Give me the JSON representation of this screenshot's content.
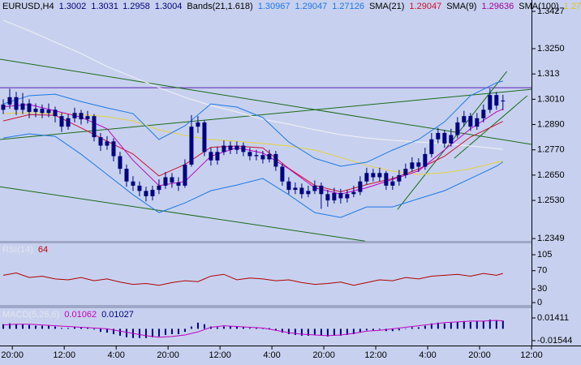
{
  "chart_data": [
    {
      "type": "candlestick",
      "header": [
        {
          "text": "EURUSD,H4",
          "color": "#000000"
        },
        {
          "text": 1.3002,
          "color": "#000080"
        },
        {
          "text": 1.3031,
          "color": "#000080"
        },
        {
          "text": 1.2958,
          "color": "#000080"
        },
        {
          "text": 1.3004,
          "color": "#000080"
        },
        {
          "text": "Bands(21,1.618)",
          "color": "#000000"
        },
        {
          "text": 1.30967,
          "color": "#1e78e6"
        },
        {
          "text": 1.29047,
          "color": "#1e78e6"
        },
        {
          "text": 1.27126,
          "color": "#1e78e6"
        },
        {
          "text": "SMA(21)",
          "color": "#000000"
        },
        {
          "text": 1.29047,
          "color": "#d01030"
        },
        {
          "text": "SMA(9)",
          "color": "#000000"
        },
        {
          "text": 1.29636,
          "color": "#a000a0"
        },
        {
          "text": "SMA(100)",
          "color": "#000000"
        },
        {
          "text": 1.27,
          "color": "#e0c020"
        }
      ],
      "color": "#000080",
      "open": [
        1.296,
        1.2985,
        1.302,
        1.296,
        1.299,
        1.295,
        1.2965,
        1.2945,
        1.296,
        1.293,
        1.288,
        1.292,
        1.2945,
        1.2915,
        1.293,
        1.283,
        1.279,
        1.281,
        1.274,
        1.268,
        1.262,
        1.26,
        1.2575,
        1.255,
        1.258,
        1.26,
        1.264,
        1.2615,
        1.26,
        1.27,
        1.288,
        1.29,
        1.276,
        1.272,
        1.276,
        1.279,
        1.277,
        1.279,
        1.276,
        1.274,
        1.2745,
        1.2725,
        1.275,
        1.269,
        1.262,
        1.258,
        1.259,
        1.256,
        1.2575,
        1.26,
        1.256,
        1.253,
        1.2565,
        1.254,
        1.256,
        1.257,
        1.262,
        1.266,
        1.264,
        1.266,
        1.26,
        1.262,
        1.265,
        1.268,
        1.271,
        1.269,
        1.275,
        1.282,
        1.285,
        1.28,
        1.284,
        1.29,
        1.293,
        1.288,
        1.292,
        1.296,
        1.303,
        1.3002
      ],
      "high": [
        1.301,
        1.306,
        1.3045,
        1.304,
        1.301,
        1.299,
        1.2985,
        1.299,
        1.2975,
        1.2945,
        1.294,
        1.297,
        1.296,
        1.2955,
        1.294,
        1.285,
        1.2835,
        1.2825,
        1.276,
        1.27,
        1.2645,
        1.262,
        1.2595,
        1.26,
        1.263,
        1.2665,
        1.266,
        1.264,
        1.2725,
        1.2935,
        1.293,
        1.291,
        1.278,
        1.2785,
        1.2815,
        1.281,
        1.281,
        1.2805,
        1.278,
        1.277,
        1.2765,
        1.277,
        1.2765,
        1.2705,
        1.264,
        1.2615,
        1.261,
        1.26,
        1.2625,
        1.2615,
        1.258,
        1.259,
        1.2585,
        1.258,
        1.26,
        1.2645,
        1.2685,
        1.268,
        1.2685,
        1.267,
        1.2645,
        1.2675,
        1.2705,
        1.2735,
        1.273,
        1.278,
        1.285,
        1.2875,
        1.2865,
        1.287,
        1.2925,
        1.2955,
        1.2945,
        1.2945,
        1.2985,
        1.306,
        1.3045,
        1.3031
      ],
      "low": [
        1.294,
        1.2965,
        1.2935,
        1.294,
        1.292,
        1.2925,
        1.292,
        1.2925,
        1.29,
        1.2855,
        1.2865,
        1.29,
        1.289,
        1.2895,
        1.281,
        1.2765,
        1.277,
        1.2715,
        1.2655,
        1.2595,
        1.2575,
        1.255,
        1.2525,
        1.253,
        1.256,
        1.2585,
        1.259,
        1.2575,
        1.259,
        1.269,
        1.285,
        1.274,
        1.2695,
        1.27,
        1.2745,
        1.275,
        1.275,
        1.274,
        1.272,
        1.272,
        1.2705,
        1.271,
        1.267,
        1.26,
        1.256,
        1.256,
        1.254,
        1.2545,
        1.256,
        1.249,
        1.25,
        1.2515,
        1.2515,
        1.252,
        1.2545,
        1.2555,
        1.2605,
        1.262,
        1.262,
        1.258,
        1.258,
        1.26,
        1.2635,
        1.2665,
        1.2665,
        1.2675,
        1.2735,
        1.28,
        1.278,
        1.2785,
        1.2825,
        1.288,
        1.286,
        1.2865,
        1.29,
        1.2945,
        1.296,
        1.2958
      ],
      "close": [
        1.2985,
        1.302,
        1.296,
        1.299,
        1.295,
        1.2965,
        1.2945,
        1.296,
        1.293,
        1.288,
        1.292,
        1.2945,
        1.2915,
        1.293,
        1.283,
        1.279,
        1.281,
        1.274,
        1.268,
        1.262,
        1.26,
        1.2575,
        1.255,
        1.258,
        1.26,
        1.264,
        1.2615,
        1.26,
        1.27,
        1.288,
        1.29,
        1.276,
        1.272,
        1.276,
        1.279,
        1.277,
        1.279,
        1.276,
        1.274,
        1.2745,
        1.2725,
        1.275,
        1.269,
        1.262,
        1.258,
        1.259,
        1.256,
        1.2575,
        1.26,
        1.256,
        1.253,
        1.2565,
        1.254,
        1.256,
        1.257,
        1.262,
        1.266,
        1.264,
        1.266,
        1.26,
        1.262,
        1.265,
        1.268,
        1.271,
        1.269,
        1.275,
        1.282,
        1.285,
        1.28,
        1.284,
        1.29,
        1.293,
        1.288,
        1.292,
        1.296,
        1.303,
        1.298,
        1.3004
      ],
      "overlays": [
        {
          "color": "#f2f2f2",
          "x": [
            0,
            4,
            8,
            12,
            16,
            20,
            24,
            28,
            32,
            36,
            40,
            44,
            48,
            52,
            56,
            60,
            64,
            68,
            72,
            76,
            77
          ],
          "values": [
            1.3385,
            1.3335,
            1.3281,
            1.3227,
            1.3165,
            1.3115,
            1.3065,
            1.3019,
            1.298,
            1.295,
            1.2915,
            1.2892,
            1.2865,
            1.2842,
            1.2826,
            1.2815,
            1.2807,
            1.28,
            1.2788,
            1.2776,
            1.2772
          ]
        },
        {
          "color": "#e6d040",
          "x": [
            0,
            4,
            8,
            12,
            16,
            20,
            24,
            28,
            32,
            36,
            40,
            44,
            48,
            52,
            56,
            60,
            64,
            68,
            72,
            76,
            77
          ],
          "values": [
            1.2942,
            1.2946,
            1.2942,
            1.2938,
            1.2927,
            1.2907,
            1.2865,
            1.2838,
            1.2819,
            1.2811,
            1.28,
            1.2788,
            1.2769,
            1.2734,
            1.2696,
            1.2669,
            1.2653,
            1.2661,
            1.268,
            1.2711,
            1.2715
          ]
        },
        {
          "color": "#1e78e6",
          "x": [
            0,
            4,
            8,
            12,
            16,
            20,
            24,
            28,
            32,
            36,
            40,
            44,
            48,
            52,
            56,
            60,
            64,
            68,
            72,
            76,
            77
          ],
          "values": [
            1.2988,
            1.3027,
            1.3034,
            1.2999,
            1.2969,
            1.2942,
            1.2819,
            1.2884,
            1.2988,
            1.2973,
            1.2923,
            1.2807,
            1.273,
            1.2692,
            1.2711,
            1.2769,
            1.2819,
            1.2903,
            1.3027,
            1.3088,
            1.30967
          ]
        },
        {
          "color": "#1e78e6",
          "x": [
            0,
            4,
            8,
            12,
            16,
            20,
            24,
            28,
            32,
            36,
            40,
            44,
            48,
            52,
            56,
            60,
            64,
            68,
            72,
            76,
            77
          ],
          "values": [
            1.2826,
            1.2846,
            1.2834,
            1.2749,
            1.2653,
            1.2557,
            1.2472,
            1.2518,
            1.2576,
            1.2603,
            1.2634,
            1.2557,
            1.2472,
            1.2449,
            1.2499,
            1.2499,
            1.2538,
            1.2576,
            1.2634,
            1.2692,
            1.27126
          ]
        },
        {
          "color": "#d01030",
          "x": [
            0,
            4,
            8,
            12,
            16,
            20,
            24,
            28,
            32,
            36,
            40,
            44,
            48,
            52,
            56,
            60,
            64,
            68,
            72,
            76,
            77
          ],
          "values": [
            1.2907,
            1.2937,
            1.2934,
            1.2874,
            1.2811,
            1.275,
            1.2646,
            1.2701,
            1.2782,
            1.2788,
            1.2779,
            1.2682,
            1.2601,
            1.2571,
            1.2605,
            1.2634,
            1.2679,
            1.274,
            1.2831,
            1.289,
            1.29047
          ]
        },
        {
          "color": "#c000c0",
          "x": [
            0,
            4,
            8,
            12,
            16,
            20,
            24,
            28,
            32,
            36,
            40,
            44,
            48,
            52,
            56,
            60,
            64,
            68,
            72,
            76,
            77
          ],
          "values": [
            1.2975,
            1.2985,
            1.2955,
            1.2925,
            1.287,
            1.272,
            1.26,
            1.262,
            1.274,
            1.278,
            1.2755,
            1.268,
            1.259,
            1.256,
            1.259,
            1.263,
            1.267,
            1.277,
            1.287,
            1.295,
            1.29636
          ]
        }
      ],
      "trendlines": [
        {
          "color": "#1a6a1a",
          "x": [
            -0.5,
            81.4
          ],
          "values": [
            1.32,
            1.2796
          ]
        },
        {
          "color": "#1a6a1a",
          "x": [
            -0.5,
            55.75
          ],
          "values": [
            1.2595,
            1.2337
          ]
        },
        {
          "color": "#1a6a1a",
          "x": [
            -0.5,
            81.4
          ],
          "values": [
            1.2819,
            1.3057
          ]
        },
        {
          "color": "#1a6a1a",
          "x": [
            60.75,
            77.6
          ],
          "values": [
            1.2487,
            1.3142
          ]
        },
        {
          "color": "#1a6a1a",
          "x": [
            69.5,
            80.75
          ],
          "values": [
            1.273,
            1.3027
          ]
        }
      ],
      "hlines": [
        {
          "color": "#5a22b0",
          "value": 1.3065
        }
      ],
      "xlim": [
        -0.5,
        81.4
      ],
      "ylim": [
        1.2334,
        1.3481
      ],
      "yticks": [
        1.3427,
        {
          "value": 1.325,
          "label": "1.3250"
        },
        1.313,
        {
          "value": 1.301,
          "label": "1.3010"
        },
        {
          "value": 1.289,
          "label": "1.2890"
        },
        {
          "value": 1.277,
          "label": "1.2770"
        },
        {
          "value": 1.265,
          "label": "1.2650"
        },
        {
          "value": 1.253,
          "label": "1.2530"
        },
        1.2349
      ]
    },
    {
      "type": "line",
      "header": [
        {
          "text": "RSI(14)",
          "color": "#e4e4ec"
        },
        {
          "text": 64,
          "color": "#c00000"
        }
      ],
      "series": [
        {
          "color": "#b00000",
          "x": [
            0,
            2,
            4,
            6,
            8,
            10,
            12,
            14,
            16,
            18,
            20,
            22,
            24,
            26,
            28,
            30,
            32,
            34,
            36,
            38,
            40,
            42,
            44,
            46,
            48,
            50,
            52,
            54,
            56,
            58,
            60,
            62,
            64,
            66,
            68,
            70,
            72,
            74,
            76,
            77
          ],
          "values": [
            60,
            65,
            55,
            58,
            52,
            50,
            55,
            48,
            52,
            45,
            40,
            42,
            38,
            44,
            48,
            46,
            58,
            62,
            50,
            54,
            52,
            48,
            50,
            44,
            40,
            42,
            45,
            38,
            44,
            50,
            48,
            55,
            52,
            58,
            60,
            62,
            58,
            64,
            60,
            64
          ]
        }
      ],
      "xlim": [
        -0.5,
        81.4
      ],
      "ylim": [
        -7,
        130
      ],
      "yticks": [
        105,
        70,
        30,
        0
      ]
    },
    {
      "type": "bar",
      "header": [
        {
          "text": "MACD(5,26,6)",
          "color": "#e4e4ec"
        },
        {
          "text": 0.01062,
          "color": "#c000c0"
        },
        {
          "text": 0.01027,
          "color": "#000080"
        }
      ],
      "color": "#000080",
      "values": [
        0.006,
        0.007,
        0.006,
        0.006,
        0.005,
        0.004,
        0.004,
        0.004,
        0.003,
        0.001,
        0.001,
        0.002,
        0.002,
        0.002,
        -0.001,
        -0.004,
        -0.005,
        -0.007,
        -0.009,
        -0.011,
        -0.012,
        -0.012,
        -0.012,
        -0.011,
        -0.01,
        -0.008,
        -0.007,
        -0.007,
        -0.004,
        0.003,
        0.008,
        0.006,
        0.003,
        0.002,
        0.003,
        0.003,
        0.003,
        0.002,
        0.001,
        0.001,
        0.0,
        0.001,
        -0.002,
        -0.005,
        -0.007,
        -0.008,
        -0.009,
        -0.009,
        -0.008,
        -0.009,
        -0.01,
        -0.009,
        -0.009,
        -0.008,
        -0.007,
        -0.005,
        -0.002,
        -0.002,
        -0.001,
        -0.003,
        -0.003,
        -0.002,
        0.0,
        0.002,
        0.002,
        0.004,
        0.007,
        0.008,
        0.007,
        0.008,
        0.009,
        0.01,
        0.009,
        0.01,
        0.01,
        0.012,
        0.011,
        0.01062
      ],
      "series": [
        {
          "color": "#c000c0",
          "x": [
            0,
            2,
            4,
            6,
            8,
            10,
            12,
            14,
            16,
            18,
            20,
            22,
            24,
            26,
            28,
            30,
            32,
            34,
            36,
            38,
            40,
            42,
            44,
            46,
            48,
            50,
            52,
            54,
            56,
            58,
            60,
            62,
            64,
            66,
            68,
            70,
            72,
            74,
            76,
            77
          ],
          "values": [
            0.005,
            0.006,
            0.006,
            0.005,
            0.004,
            0.003,
            0.002,
            0.001,
            0.0,
            -0.003,
            -0.006,
            -0.009,
            -0.011,
            -0.01,
            -0.008,
            -0.004,
            0.002,
            0.004,
            0.003,
            0.002,
            0.001,
            -0.002,
            -0.005,
            -0.007,
            -0.008,
            -0.009,
            -0.008,
            -0.006,
            -0.003,
            -0.002,
            0.0,
            0.002,
            0.004,
            0.006,
            0.008,
            0.009,
            0.01,
            0.01,
            0.011,
            0.01027
          ]
        }
      ],
      "xlim": [
        -0.5,
        81.4
      ],
      "ylim": [
        -0.02072,
        0.02678
      ],
      "yticks": [
        0.01411,
        -0.01544
      ],
      "xticks": [
        {
          "value": 1.4,
          "label": "20:00"
        },
        {
          "value": 9.4,
          "label": "12:00"
        },
        {
          "value": 17.4,
          "label": "4:00"
        },
        {
          "value": 25.4,
          "label": "20:00"
        },
        {
          "value": 33.4,
          "label": "12:00"
        },
        {
          "value": 41.4,
          "label": "4:00"
        },
        {
          "value": 49.4,
          "label": "20:00"
        },
        {
          "value": 57.4,
          "label": "12:00"
        },
        {
          "value": 65.4,
          "label": "4:00"
        },
        {
          "value": 73.4,
          "label": "20:00"
        },
        {
          "value": 81.4,
          "label": "12:00"
        }
      ]
    }
  ]
}
